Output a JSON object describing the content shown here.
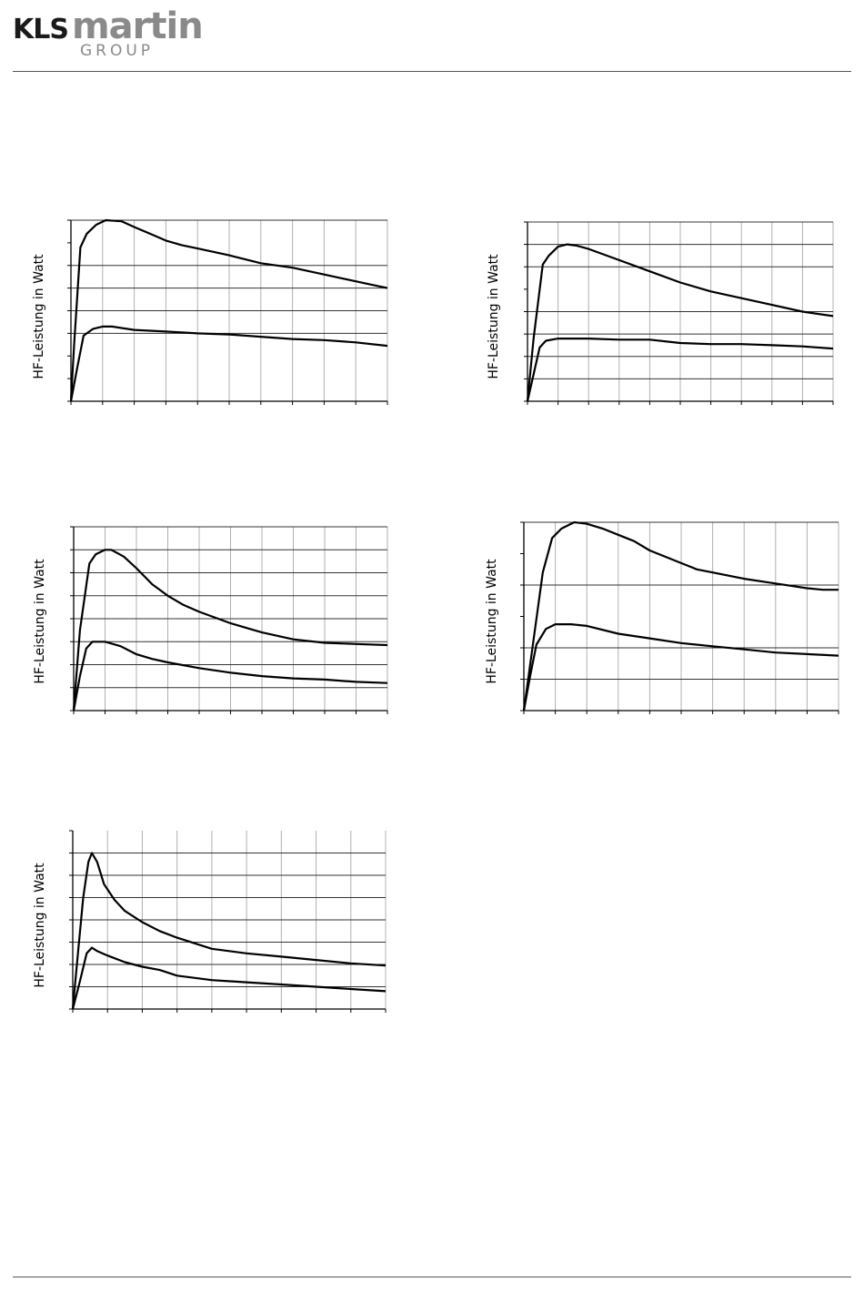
{
  "header": {
    "logo_primary": "KLS",
    "logo_secondary": "martin",
    "logo_group": "GROUP"
  },
  "chart_data": [
    {
      "type": "line",
      "ylabel": "HF-Leistung in Watt",
      "xlim": [
        0,
        10
      ],
      "ylim": [
        0,
        8
      ],
      "x_ticks": 10,
      "y_ticks": 8,
      "h_grid": [
        3,
        4,
        5,
        6,
        8
      ],
      "v_grid": [
        1,
        2,
        3,
        4,
        5,
        6,
        7,
        8,
        9,
        10
      ],
      "series": [
        {
          "x": [
            0,
            0.1,
            0.3,
            0.5,
            0.8,
            1.1,
            1.6,
            2,
            2.5,
            3,
            3.5,
            4,
            5,
            6,
            7,
            8,
            9,
            9.5,
            10
          ],
          "y": [
            0,
            2.5,
            6.8,
            7.4,
            7.8,
            8.0,
            7.95,
            7.7,
            7.4,
            7.1,
            6.9,
            6.75,
            6.45,
            6.1,
            5.9,
            5.6,
            5.3,
            5.15,
            5.0
          ]
        },
        {
          "x": [
            0,
            0.2,
            0.4,
            0.7,
            1,
            1.3,
            2,
            3,
            4,
            5,
            6,
            7,
            8,
            9,
            10
          ],
          "y": [
            0,
            1.5,
            2.9,
            3.2,
            3.3,
            3.3,
            3.15,
            3.08,
            3.0,
            2.95,
            2.85,
            2.75,
            2.7,
            2.6,
            2.45
          ]
        }
      ]
    },
    {
      "type": "line",
      "ylabel": "HF-Leistung in Watt",
      "xlim": [
        0,
        10
      ],
      "ylim": [
        0,
        8
      ],
      "x_ticks": 10,
      "y_ticks": 8,
      "h_grid": [
        1,
        2,
        3,
        4,
        6,
        7,
        8
      ],
      "v_grid": [
        1,
        2,
        3,
        4,
        5,
        6,
        7,
        8,
        9,
        10
      ],
      "series": [
        {
          "x": [
            0,
            0.2,
            0.5,
            0.7,
            1,
            1.3,
            1.6,
            2,
            3,
            4,
            5,
            6,
            7,
            8,
            9,
            10
          ],
          "y": [
            0,
            2.8,
            6.1,
            6.5,
            6.9,
            7.0,
            6.95,
            6.8,
            6.3,
            5.8,
            5.3,
            4.9,
            4.6,
            4.3,
            4.0,
            3.8
          ]
        },
        {
          "x": [
            0,
            0.2,
            0.4,
            0.6,
            1,
            1.5,
            2,
            3,
            4,
            5,
            6,
            7,
            8,
            9,
            10
          ],
          "y": [
            0,
            1.2,
            2.4,
            2.7,
            2.8,
            2.8,
            2.8,
            2.75,
            2.75,
            2.6,
            2.55,
            2.55,
            2.5,
            2.45,
            2.35
          ]
        }
      ]
    },
    {
      "type": "line",
      "ylabel": "HF-Leistung in Watt",
      "xlim": [
        0,
        10
      ],
      "ylim": [
        0,
        8
      ],
      "x_ticks": 10,
      "y_ticks": 8,
      "h_grid": [
        1,
        2,
        3,
        4,
        5,
        6,
        7,
        8
      ],
      "v_grid": [
        1,
        2,
        3,
        4,
        5,
        6,
        7,
        8,
        9,
        10
      ],
      "series": [
        {
          "x": [
            0,
            0.2,
            0.5,
            0.7,
            1,
            1.2,
            1.6,
            2,
            2.5,
            3,
            3.5,
            4,
            5,
            5.5,
            6,
            7,
            8,
            9,
            10
          ],
          "y": [
            0,
            3.5,
            6.4,
            6.8,
            7.0,
            7.0,
            6.7,
            6.2,
            5.5,
            5.0,
            4.6,
            4.3,
            3.8,
            3.6,
            3.4,
            3.1,
            2.95,
            2.9,
            2.85
          ]
        },
        {
          "x": [
            0,
            0.2,
            0.4,
            0.6,
            1,
            1.5,
            2,
            2.5,
            3,
            4,
            5,
            6,
            7,
            8,
            9,
            10
          ],
          "y": [
            0,
            1.5,
            2.7,
            3.0,
            3.0,
            2.8,
            2.45,
            2.25,
            2.1,
            1.85,
            1.65,
            1.5,
            1.4,
            1.35,
            1.25,
            1.2
          ]
        }
      ]
    },
    {
      "type": "line",
      "ylabel": "HF-Leistung in Watt",
      "xlim": [
        0,
        10
      ],
      "ylim": [
        0,
        6
      ],
      "x_ticks": 10,
      "y_ticks": 6,
      "h_grid": [
        1,
        2,
        4,
        6
      ],
      "v_grid": [
        1,
        2,
        3,
        4,
        5,
        6,
        7,
        8,
        9,
        10
      ],
      "series": [
        {
          "x": [
            0,
            0.3,
            0.6,
            0.9,
            1.2,
            1.6,
            2,
            2.5,
            3,
            3.5,
            4,
            5,
            5.5,
            6,
            7,
            8,
            9,
            9.5,
            10
          ],
          "y": [
            0,
            2.2,
            4.4,
            5.5,
            5.8,
            6.0,
            5.95,
            5.8,
            5.6,
            5.4,
            5.1,
            4.7,
            4.5,
            4.4,
            4.2,
            4.05,
            3.9,
            3.85,
            3.85
          ]
        },
        {
          "x": [
            0,
            0.2,
            0.4,
            0.7,
            1,
            1.5,
            2,
            3,
            4,
            5,
            6,
            7,
            8,
            9,
            10
          ],
          "y": [
            0,
            1.1,
            2.1,
            2.6,
            2.75,
            2.75,
            2.7,
            2.45,
            2.3,
            2.15,
            2.05,
            1.95,
            1.85,
            1.8,
            1.75
          ]
        }
      ]
    },
    {
      "type": "line",
      "ylabel": "HF-Leistung in Watt",
      "xlim": [
        0,
        9
      ],
      "ylim": [
        0,
        8
      ],
      "x_ticks": 9,
      "y_ticks": 8,
      "h_grid": [
        1,
        2,
        3,
        4,
        5,
        6,
        7
      ],
      "v_grid": [
        1,
        2,
        3,
        4,
        5,
        6,
        7,
        8,
        9
      ],
      "series": [
        {
          "x": [
            0,
            0.15,
            0.3,
            0.45,
            0.55,
            0.7,
            0.9,
            1.2,
            1.5,
            2,
            2.5,
            3,
            4,
            5,
            6,
            7,
            8,
            9
          ],
          "y": [
            0,
            2.5,
            5.0,
            6.6,
            7.0,
            6.6,
            5.6,
            4.9,
            4.4,
            3.9,
            3.5,
            3.2,
            2.7,
            2.5,
            2.35,
            2.2,
            2.05,
            1.95
          ]
        },
        {
          "x": [
            0,
            0.2,
            0.4,
            0.55,
            0.7,
            1,
            1.5,
            2,
            2.5,
            3,
            4,
            5,
            6,
            7,
            8,
            9
          ],
          "y": [
            0,
            1.2,
            2.5,
            2.75,
            2.6,
            2.4,
            2.1,
            1.9,
            1.75,
            1.5,
            1.3,
            1.2,
            1.1,
            1.0,
            0.9,
            0.8
          ]
        }
      ]
    }
  ]
}
